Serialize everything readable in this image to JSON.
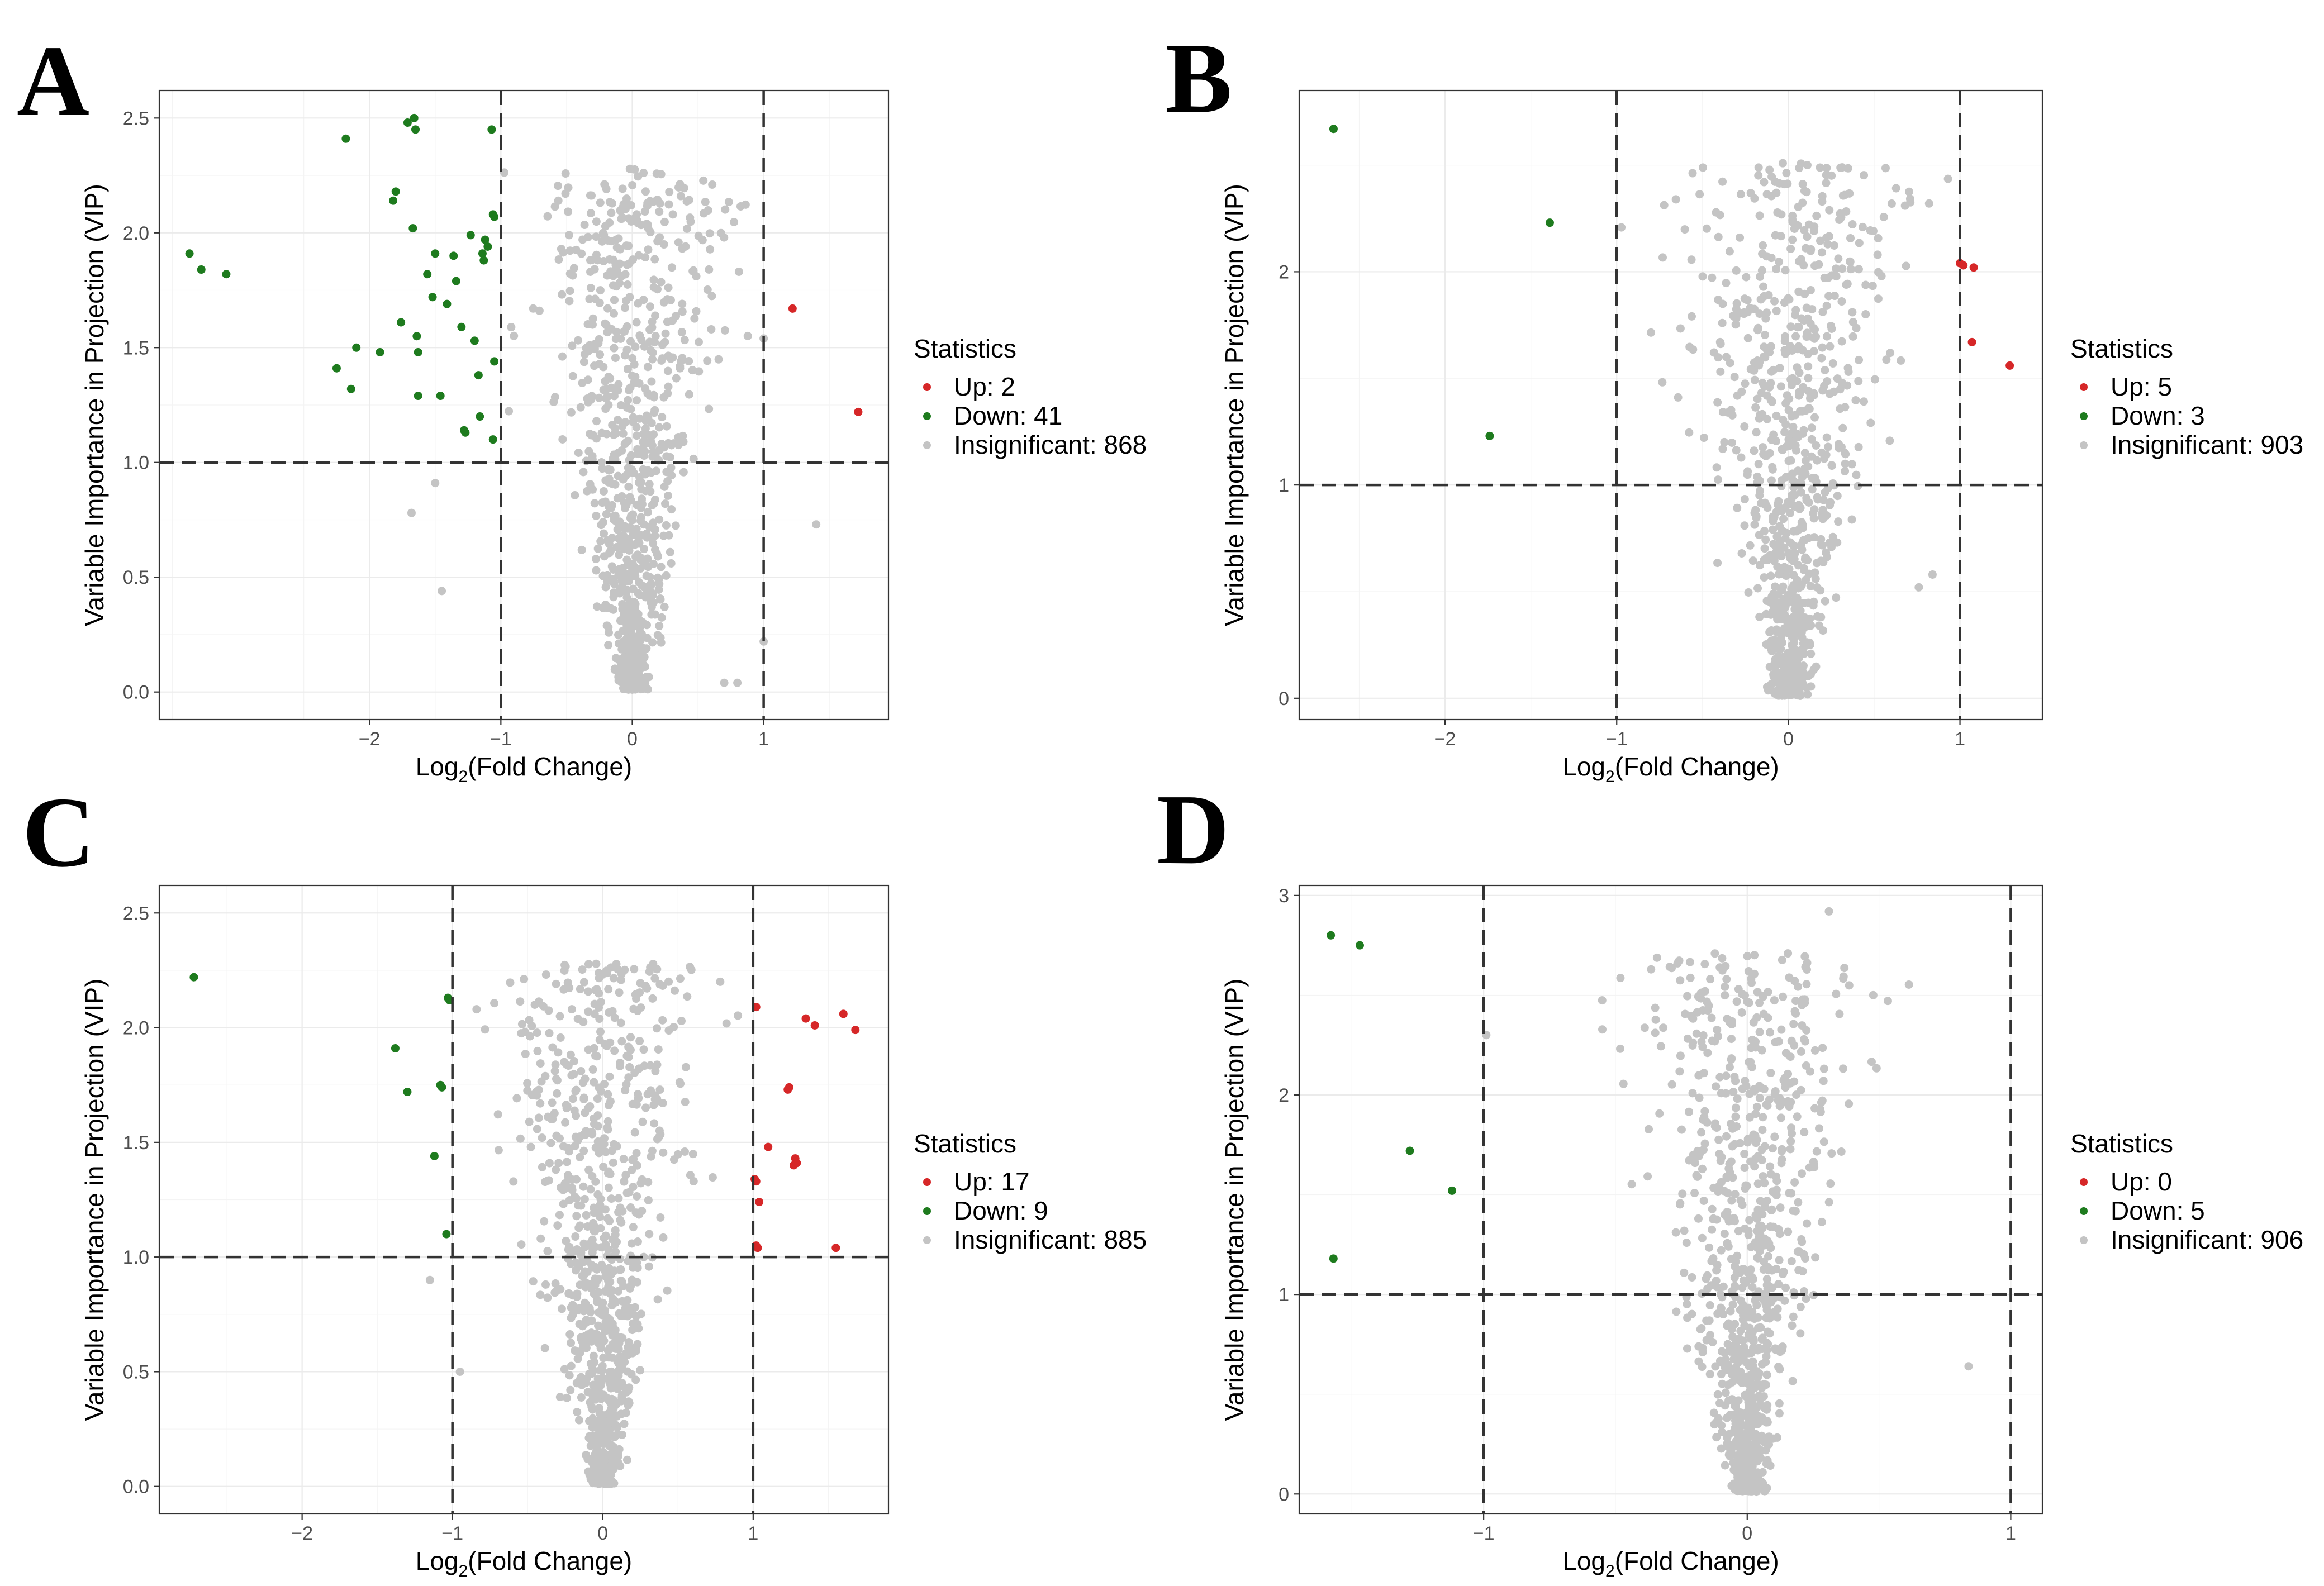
{
  "figure": {
    "x_axis_label_prefix": "Log",
    "x_axis_label_sub": "2",
    "x_axis_label_suffix": "(Fold Change)",
    "y_axis_label": "Variable Importance in Projection (VIP)",
    "legend_title": "Statistics",
    "colors": {
      "up": "#d62728",
      "down": "#1e7b1e",
      "insignificant": "#c4c4c4"
    }
  },
  "chart_data": [
    {
      "panel": "A",
      "type": "scatter",
      "title": "",
      "xlabel": "Log2(Fold Change)",
      "ylabel": "Variable Importance in Projection (VIP)",
      "xlim": [
        -3.6,
        1.95
      ],
      "ylim": [
        -0.12,
        2.62
      ],
      "x_ticks": [
        -2,
        -1,
        0,
        1
      ],
      "y_ticks": [
        0.0,
        0.5,
        1.0,
        1.5,
        2.0,
        2.5
      ],
      "y_tick_labels": [
        "0.0",
        "0.5",
        "1.0",
        "1.5",
        "2.0",
        "2.5"
      ],
      "thresholds": {
        "x": [
          -1,
          1
        ],
        "y": 1.0
      },
      "legend": [
        {
          "key": "up",
          "label": "Up: 2"
        },
        {
          "key": "down",
          "label": "Down: 41"
        },
        {
          "key": "insignificant",
          "label": "Insignificant: 868"
        }
      ],
      "insignificant_spec": {
        "count": 868,
        "seed": 11,
        "center": 0.0,
        "spread": 0.7
      },
      "up_points": [
        [
          1.22,
          1.67
        ],
        [
          1.72,
          1.22
        ]
      ],
      "down_points": [
        [
          -3.37,
          1.91
        ],
        [
          -3.28,
          1.84
        ],
        [
          -3.09,
          1.82
        ],
        [
          -2.18,
          2.41
        ],
        [
          -2.25,
          1.41
        ],
        [
          -2.1,
          1.5
        ],
        [
          -2.14,
          1.32
        ],
        [
          -1.92,
          1.48
        ],
        [
          -1.82,
          2.14
        ],
        [
          -1.8,
          2.18
        ],
        [
          -1.71,
          2.48
        ],
        [
          -1.66,
          2.5
        ],
        [
          -1.65,
          2.45
        ],
        [
          -1.67,
          2.02
        ],
        [
          -1.64,
          1.55
        ],
        [
          -1.63,
          1.48
        ],
        [
          -1.63,
          1.29
        ],
        [
          -1.52,
          1.72
        ],
        [
          -1.5,
          1.91
        ],
        [
          -1.46,
          1.29
        ],
        [
          -1.36,
          1.9
        ],
        [
          -1.3,
          1.59
        ],
        [
          -1.28,
          1.14
        ],
        [
          -1.27,
          1.13
        ],
        [
          -1.23,
          1.99
        ],
        [
          -1.2,
          1.53
        ],
        [
          -1.17,
          1.38
        ],
        [
          -1.14,
          1.91
        ],
        [
          -1.13,
          1.88
        ],
        [
          -1.1,
          1.94
        ],
        [
          -1.07,
          2.45
        ],
        [
          -1.06,
          2.08
        ],
        [
          -1.05,
          2.07
        ],
        [
          -1.05,
          1.44
        ],
        [
          -1.06,
          1.1
        ],
        [
          -1.12,
          1.97
        ],
        [
          -1.41,
          1.69
        ],
        [
          -1.56,
          1.82
        ],
        [
          -1.34,
          1.79
        ],
        [
          -1.76,
          1.61
        ],
        [
          -1.16,
          1.2
        ]
      ],
      "outlier_points": [
        [
          -1.5,
          0.91
        ],
        [
          -1.68,
          0.78
        ],
        [
          -1.45,
          0.44
        ],
        [
          1.4,
          0.73
        ],
        [
          1.0,
          0.22
        ],
        [
          0.7,
          0.04
        ],
        [
          0.8,
          0.04
        ],
        [
          1.0,
          1.54
        ]
      ]
    },
    {
      "panel": "B",
      "type": "scatter",
      "title": "",
      "xlabel": "Log2(Fold Change)",
      "ylabel": "Variable Importance in Projection (VIP)",
      "xlim": [
        -2.85,
        1.48
      ],
      "ylim": [
        -0.1,
        2.85
      ],
      "x_ticks": [
        -2,
        -1,
        0,
        1
      ],
      "y_ticks": [
        0,
        1,
        2
      ],
      "y_tick_labels": [
        "0",
        "1",
        "2"
      ],
      "thresholds": {
        "x": [
          -1,
          1
        ],
        "y": 1.0
      },
      "legend": [
        {
          "key": "up",
          "label": "Up: 5"
        },
        {
          "key": "down",
          "label": "Down: 3"
        },
        {
          "key": "insignificant",
          "label": "Insignificant: 903"
        }
      ],
      "insignificant_spec": {
        "count": 903,
        "seed": 23,
        "center": 0.0,
        "spread": 0.62
      },
      "up_points": [
        [
          1.0,
          2.04
        ],
        [
          1.02,
          2.03
        ],
        [
          1.08,
          2.02
        ],
        [
          1.07,
          1.67
        ],
        [
          1.29,
          1.56
        ]
      ],
      "down_points": [
        [
          -2.65,
          2.67
        ],
        [
          -1.39,
          2.23
        ],
        [
          -1.74,
          1.23
        ]
      ],
      "outlier_points": [
        [
          0.82,
          2.32
        ],
        [
          0.52,
          2.08
        ],
        [
          0.84,
          0.58
        ],
        [
          0.76,
          0.52
        ]
      ]
    },
    {
      "panel": "C",
      "type": "scatter",
      "title": "",
      "xlabel": "Log2(Fold Change)",
      "ylabel": "Variable Importance in Projection (VIP)",
      "xlim": [
        -2.95,
        1.9
      ],
      "ylim": [
        -0.12,
        2.62
      ],
      "x_ticks": [
        -2,
        -1,
        0,
        1
      ],
      "y_ticks": [
        0.0,
        0.5,
        1.0,
        1.5,
        2.0,
        2.5
      ],
      "y_tick_labels": [
        "0.0",
        "0.5",
        "1.0",
        "1.5",
        "2.0",
        "2.5"
      ],
      "thresholds": {
        "x": [
          -1,
          1
        ],
        "y": 1.0
      },
      "legend": [
        {
          "key": "up",
          "label": "Up: 17"
        },
        {
          "key": "down",
          "label": "Down: 9"
        },
        {
          "key": "insignificant",
          "label": "Insignificant: 885"
        }
      ],
      "insignificant_spec": {
        "count": 885,
        "seed": 37,
        "center": 0.0,
        "spread": 0.62
      },
      "up_points": [
        [
          1.02,
          2.09
        ],
        [
          1.35,
          2.04
        ],
        [
          1.41,
          2.01
        ],
        [
          1.6,
          2.06
        ],
        [
          1.68,
          1.99
        ],
        [
          1.23,
          1.73
        ],
        [
          1.24,
          1.74
        ],
        [
          1.1,
          1.48
        ],
        [
          1.28,
          1.43
        ],
        [
          1.27,
          1.4
        ],
        [
          1.01,
          1.34
        ],
        [
          1.04,
          1.24
        ],
        [
          1.03,
          1.04
        ],
        [
          1.02,
          1.05
        ],
        [
          1.55,
          1.04
        ],
        [
          1.29,
          1.41
        ],
        [
          1.02,
          1.33
        ]
      ],
      "down_points": [
        [
          -2.72,
          2.22
        ],
        [
          -1.38,
          1.91
        ],
        [
          -1.3,
          1.72
        ],
        [
          -1.08,
          1.75
        ],
        [
          -1.02,
          2.12
        ],
        [
          -1.12,
          1.44
        ],
        [
          -1.04,
          1.1
        ],
        [
          -1.03,
          2.13
        ],
        [
          -1.07,
          1.74
        ]
      ],
      "outlier_points": [
        [
          -1.15,
          0.9
        ],
        [
          -0.95,
          0.5
        ]
      ]
    },
    {
      "panel": "D",
      "type": "scatter",
      "title": "",
      "xlabel": "Log2(Fold Change)",
      "ylabel": "Variable Importance in Projection (VIP)",
      "xlim": [
        -1.7,
        1.12
      ],
      "ylim": [
        -0.1,
        3.05
      ],
      "x_ticks": [
        -1,
        0,
        1
      ],
      "y_ticks": [
        0,
        1,
        2,
        3
      ],
      "y_tick_labels": [
        "0",
        "1",
        "2",
        "3"
      ],
      "thresholds": {
        "x": [
          -1,
          1
        ],
        "y": 1.0
      },
      "legend": [
        {
          "key": "up",
          "label": "Up: 0"
        },
        {
          "key": "down",
          "label": "Down: 5"
        },
        {
          "key": "insignificant",
          "label": "Insignificant: 906"
        }
      ],
      "insignificant_spec": {
        "count": 906,
        "seed": 53,
        "center": 0.0,
        "spread": 0.4
      },
      "up_points": [],
      "down_points": [
        [
          -1.58,
          2.8
        ],
        [
          -1.47,
          2.75
        ],
        [
          -1.28,
          1.72
        ],
        [
          -1.12,
          1.52
        ],
        [
          -1.57,
          1.18
        ]
      ],
      "outlier_points": [
        [
          0.31,
          2.92
        ],
        [
          0.84,
          0.64
        ],
        [
          -0.99,
          2.3
        ]
      ]
    }
  ]
}
